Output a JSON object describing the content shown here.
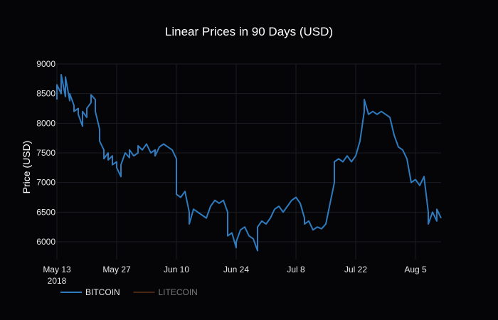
{
  "chart_data": {
    "type": "line",
    "title": "Linear Prices in 90 Days (USD)",
    "ylabel": "Price (USD)",
    "xlabel": "",
    "ylim": [
      5700,
      9000
    ],
    "yticks": [
      6000,
      6500,
      7000,
      7500,
      8000,
      8500,
      9000
    ],
    "x_start": "2018-05-13",
    "x_end": "2018-08-11",
    "xticks": [
      {
        "date": "2018-05-13",
        "label": "May 13",
        "sublabel": "2018"
      },
      {
        "date": "2018-05-27",
        "label": "May 27"
      },
      {
        "date": "2018-06-10",
        "label": "Jun 10"
      },
      {
        "date": "2018-06-24",
        "label": "Jun 24"
      },
      {
        "date": "2018-07-08",
        "label": "Jul 8"
      },
      {
        "date": "2018-07-22",
        "label": "Jul 22"
      },
      {
        "date": "2018-08-05",
        "label": "Aug 5"
      }
    ],
    "grid": true,
    "legend_position": "bottom-left",
    "series": [
      {
        "name": "BITCOIN",
        "color": "#2e7bbf",
        "visible": true,
        "points": [
          [
            "2018-05-13",
            8400
          ],
          [
            "2018-05-13",
            8650
          ],
          [
            "2018-05-14",
            8500
          ],
          [
            "2018-05-14",
            8820
          ],
          [
            "2018-05-15",
            8450
          ],
          [
            "2018-05-15",
            8780
          ],
          [
            "2018-05-16",
            8380
          ],
          [
            "2018-05-16",
            8500
          ],
          [
            "2018-05-17",
            8300
          ],
          [
            "2018-05-17",
            8200
          ],
          [
            "2018-05-18",
            8250
          ],
          [
            "2018-05-18",
            8150
          ],
          [
            "2018-05-19",
            7950
          ],
          [
            "2018-05-19",
            8200
          ],
          [
            "2018-05-20",
            8100
          ],
          [
            "2018-05-20",
            8250
          ],
          [
            "2018-05-21",
            8350
          ],
          [
            "2018-05-21",
            8480
          ],
          [
            "2018-05-22",
            8400
          ],
          [
            "2018-05-22",
            8200
          ],
          [
            "2018-05-23",
            7900
          ],
          [
            "2018-05-23",
            7700
          ],
          [
            "2018-05-24",
            7550
          ],
          [
            "2018-05-24",
            7400
          ],
          [
            "2018-05-25",
            7500
          ],
          [
            "2018-05-25",
            7380
          ],
          [
            "2018-05-26",
            7450
          ],
          [
            "2018-05-26",
            7300
          ],
          [
            "2018-05-27",
            7350
          ],
          [
            "2018-05-27",
            7250
          ],
          [
            "2018-05-28",
            7100
          ],
          [
            "2018-05-28",
            7300
          ],
          [
            "2018-05-29",
            7500
          ],
          [
            "2018-05-30",
            7420
          ],
          [
            "2018-05-30",
            7550
          ],
          [
            "2018-05-31",
            7450
          ],
          [
            "2018-06-01",
            7500
          ],
          [
            "2018-06-01",
            7620
          ],
          [
            "2018-06-02",
            7550
          ],
          [
            "2018-06-03",
            7650
          ],
          [
            "2018-06-04",
            7500
          ],
          [
            "2018-06-05",
            7550
          ],
          [
            "2018-06-05",
            7450
          ],
          [
            "2018-06-06",
            7600
          ],
          [
            "2018-06-07",
            7650
          ],
          [
            "2018-06-08",
            7600
          ],
          [
            "2018-06-09",
            7550
          ],
          [
            "2018-06-10",
            7400
          ],
          [
            "2018-06-10",
            6800
          ],
          [
            "2018-06-11",
            6750
          ],
          [
            "2018-06-12",
            6850
          ],
          [
            "2018-06-13",
            6500
          ],
          [
            "2018-06-13",
            6300
          ],
          [
            "2018-06-14",
            6550
          ],
          [
            "2018-06-15",
            6500
          ],
          [
            "2018-06-16",
            6450
          ],
          [
            "2018-06-17",
            6400
          ],
          [
            "2018-06-18",
            6600
          ],
          [
            "2018-06-19",
            6700
          ],
          [
            "2018-06-20",
            6650
          ],
          [
            "2018-06-21",
            6700
          ],
          [
            "2018-06-22",
            6500
          ],
          [
            "2018-06-22",
            6100
          ],
          [
            "2018-06-23",
            6150
          ],
          [
            "2018-06-24",
            5900
          ],
          [
            "2018-06-24",
            6000
          ],
          [
            "2018-06-25",
            6200
          ],
          [
            "2018-06-26",
            6250
          ],
          [
            "2018-06-27",
            6100
          ],
          [
            "2018-06-28",
            6050
          ],
          [
            "2018-06-29",
            5850
          ],
          [
            "2018-06-29",
            6250
          ],
          [
            "2018-06-30",
            6350
          ],
          [
            "2018-07-01",
            6300
          ],
          [
            "2018-07-02",
            6400
          ],
          [
            "2018-07-03",
            6550
          ],
          [
            "2018-07-04",
            6600
          ],
          [
            "2018-07-05",
            6500
          ],
          [
            "2018-07-06",
            6600
          ],
          [
            "2018-07-07",
            6700
          ],
          [
            "2018-07-08",
            6750
          ],
          [
            "2018-07-09",
            6650
          ],
          [
            "2018-07-10",
            6400
          ],
          [
            "2018-07-10",
            6300
          ],
          [
            "2018-07-11",
            6350
          ],
          [
            "2018-07-12",
            6200
          ],
          [
            "2018-07-13",
            6250
          ],
          [
            "2018-07-14",
            6220
          ],
          [
            "2018-07-15",
            6300
          ],
          [
            "2018-07-16",
            6650
          ],
          [
            "2018-07-17",
            7000
          ],
          [
            "2018-07-17",
            7350
          ],
          [
            "2018-07-18",
            7400
          ],
          [
            "2018-07-19",
            7350
          ],
          [
            "2018-07-20",
            7450
          ],
          [
            "2018-07-21",
            7350
          ],
          [
            "2018-07-22",
            7450
          ],
          [
            "2018-07-23",
            7700
          ],
          [
            "2018-07-24",
            8200
          ],
          [
            "2018-07-24",
            8400
          ],
          [
            "2018-07-25",
            8150
          ],
          [
            "2018-07-26",
            8200
          ],
          [
            "2018-07-27",
            8150
          ],
          [
            "2018-07-28",
            8200
          ],
          [
            "2018-07-29",
            8150
          ],
          [
            "2018-07-30",
            8100
          ],
          [
            "2018-07-31",
            7800
          ],
          [
            "2018-08-01",
            7600
          ],
          [
            "2018-08-02",
            7550
          ],
          [
            "2018-08-03",
            7400
          ],
          [
            "2018-08-04",
            7000
          ],
          [
            "2018-08-05",
            7050
          ],
          [
            "2018-08-06",
            6950
          ],
          [
            "2018-08-07",
            7100
          ],
          [
            "2018-08-08",
            6500
          ],
          [
            "2018-08-08",
            6300
          ],
          [
            "2018-08-09",
            6500
          ],
          [
            "2018-08-10",
            6350
          ],
          [
            "2018-08-10",
            6550
          ],
          [
            "2018-08-11",
            6400
          ]
        ]
      },
      {
        "name": "LITECOIN",
        "color": "#8c4a1f",
        "visible": false,
        "points": []
      }
    ]
  }
}
